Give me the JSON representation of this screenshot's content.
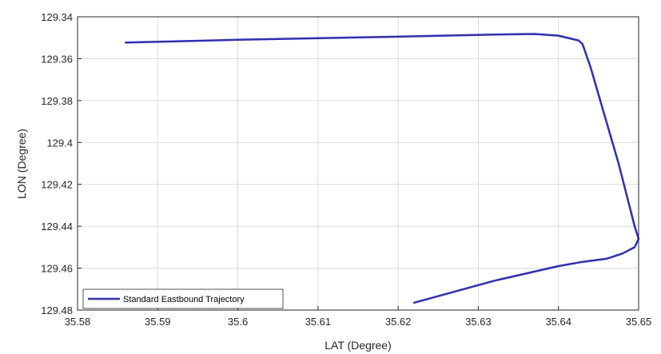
{
  "chart_data": {
    "type": "line",
    "xlabel": "LAT (Degree)",
    "ylabel": "LON (Degree)",
    "xlim": [
      35.58,
      35.65
    ],
    "ylim": [
      129.34,
      129.48
    ],
    "y_reversed": true,
    "grid": true,
    "legend_position": "bottom-left",
    "x_ticks": [
      "35.58",
      "35.59",
      "35.6",
      "35.61",
      "35.62",
      "35.63",
      "35.64",
      "35.65"
    ],
    "y_ticks": [
      "129.34",
      "129.36",
      "129.38",
      "129.4",
      "129.42",
      "129.44",
      "129.46",
      "129.48"
    ],
    "series": [
      {
        "name": "Standard Eastbound Trajectory",
        "color": "#2b2bd0",
        "x": [
          35.586,
          35.6,
          35.62,
          35.632,
          35.637,
          35.64,
          35.6425,
          35.643,
          35.644,
          35.6475,
          35.6495,
          35.65,
          35.6495,
          35.648,
          35.646,
          35.643,
          35.64,
          35.632,
          35.622
        ],
        "y": [
          129.3523,
          129.351,
          129.3495,
          129.3485,
          129.3482,
          129.349,
          129.3513,
          129.353,
          129.364,
          129.41,
          129.44,
          129.446,
          129.45,
          129.453,
          129.4555,
          129.457,
          129.459,
          129.466,
          129.4765
        ]
      }
    ]
  }
}
